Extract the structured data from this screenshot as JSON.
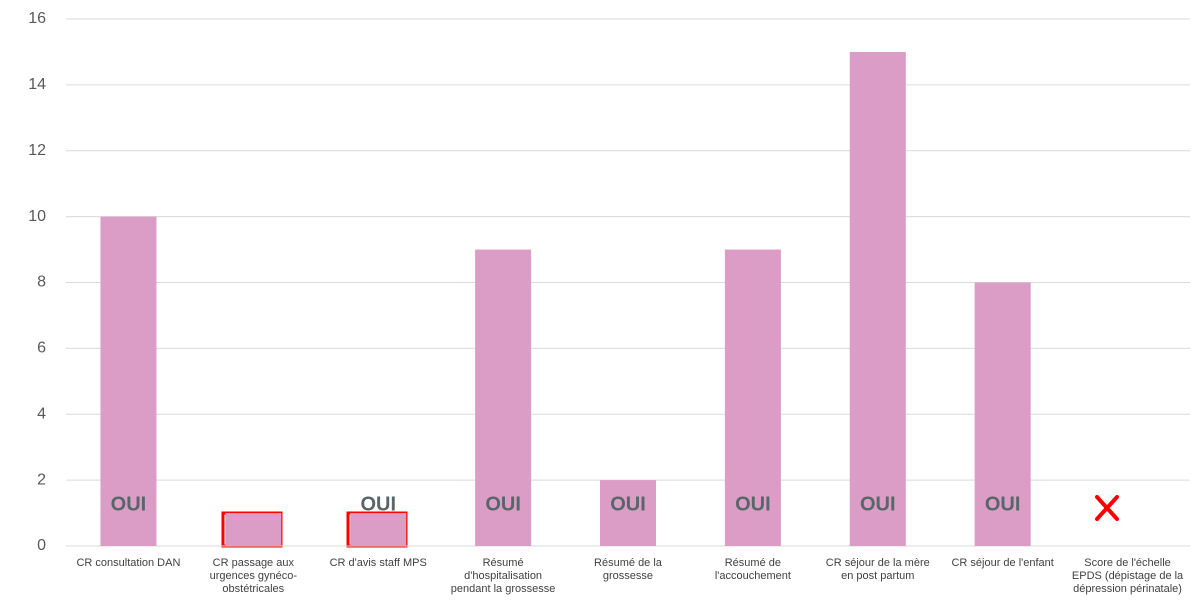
{
  "chart_data": {
    "type": "bar",
    "categories": [
      "CR consultation DAN",
      "CR passage aux urgences gynéco-obstétricales",
      "CR d'avis staff MPS",
      "Résumé d'hospitalisation pendant la grossesse",
      "Résumé de la grossesse",
      "Résumé de l'accouchement",
      "CR séjour de la mère en post partum",
      "CR séjour de l'enfant",
      "Score de l'échelle EPDS (dépistage de la dépression périnatale)"
    ],
    "values": [
      10,
      1,
      1,
      9,
      2,
      9,
      15,
      8,
      null
    ],
    "annotations": [
      "OUI",
      null,
      "OUI",
      "OUI",
      "OUI",
      "OUI",
      "OUI",
      "OUI",
      null
    ],
    "color": "#db9dc5",
    "ylim": [
      0,
      16
    ],
    "yticks": [
      0,
      2,
      4,
      6,
      8,
      10,
      12,
      14,
      16
    ],
    "grid": true
  }
}
